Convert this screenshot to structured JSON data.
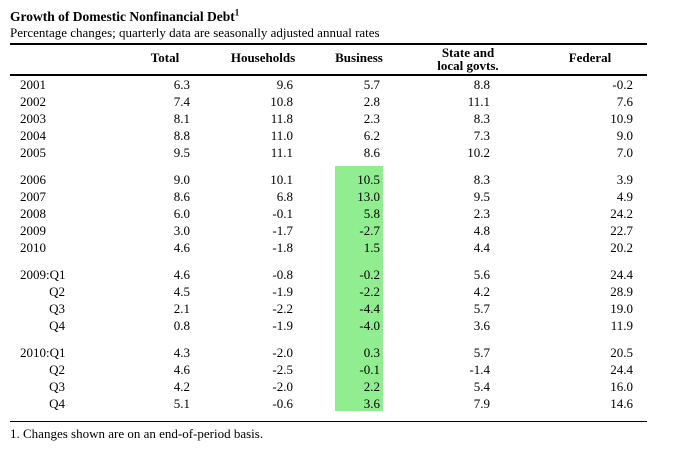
{
  "page": {
    "title": "Growth of Domestic Nonfinancial Debt",
    "title_superscript": "1",
    "subtitle": "Percentage changes; quarterly data are seasonally adjusted annual rates",
    "footnote": "1. Changes shown are on an end-of-period basis."
  },
  "table": {
    "columns": {
      "total": "Total",
      "households": "Households",
      "business": "Business",
      "state_local_line1": "State and",
      "state_local_line2": "local govts.",
      "federal": "Federal"
    },
    "highlight": {
      "column": "Business",
      "color": "#90EE90",
      "applies_to": "Business column values from 2006 annual rows through 2010:Q4 quarterly rows (continuous band)"
    },
    "sections": [
      {
        "business_highlighted": false,
        "rows": [
          {
            "label": "2001",
            "values": [
              "6.3",
              "9.6",
              "5.7",
              "8.8",
              "-0.2"
            ]
          },
          {
            "label": "2002",
            "values": [
              "7.4",
              "10.8",
              "2.8",
              "11.1",
              "7.6"
            ]
          },
          {
            "label": "2003",
            "values": [
              "8.1",
              "11.8",
              "2.3",
              "8.3",
              "10.9"
            ]
          },
          {
            "label": "2004",
            "values": [
              "8.8",
              "11.0",
              "6.2",
              "7.3",
              "9.0"
            ]
          },
          {
            "label": "2005",
            "values": [
              "9.5",
              "11.1",
              "8.6",
              "10.2",
              "7.0"
            ]
          }
        ]
      },
      {
        "business_highlighted": true,
        "rows": [
          {
            "label": "2006",
            "values": [
              "9.0",
              "10.1",
              "10.5",
              "8.3",
              "3.9"
            ]
          },
          {
            "label": "2007",
            "values": [
              "8.6",
              "6.8",
              "13.0",
              "9.5",
              "4.9"
            ]
          },
          {
            "label": "2008",
            "values": [
              "6.0",
              "-0.1",
              "5.8",
              "2.3",
              "24.2"
            ]
          },
          {
            "label": "2009",
            "values": [
              "3.0",
              "-1.7",
              "-2.7",
              "4.8",
              "22.7"
            ]
          },
          {
            "label": "2010",
            "values": [
              "4.6",
              "-1.8",
              "1.5",
              "4.4",
              "20.2"
            ]
          }
        ]
      },
      {
        "business_highlighted": true,
        "rows": [
          {
            "label": "2009:Q1",
            "values": [
              "4.6",
              "-0.8",
              "-0.2",
              "5.6",
              "24.4"
            ]
          },
          {
            "label": "Q2",
            "values": [
              "4.5",
              "-1.9",
              "-2.2",
              "4.2",
              "28.9"
            ]
          },
          {
            "label": "Q3",
            "values": [
              "2.1",
              "-2.2",
              "-4.4",
              "5.7",
              "19.0"
            ]
          },
          {
            "label": "Q4",
            "values": [
              "0.8",
              "-1.9",
              "-4.0",
              "3.6",
              "11.9"
            ]
          }
        ]
      },
      {
        "business_highlighted": true,
        "rows": [
          {
            "label": "2010:Q1",
            "values": [
              "4.3",
              "-2.0",
              "0.3",
              "5.7",
              "20.5"
            ]
          },
          {
            "label": "Q2",
            "values": [
              "4.6",
              "-2.5",
              "-0.1",
              "-1.4",
              "24.4"
            ]
          },
          {
            "label": "Q3",
            "values": [
              "4.2",
              "-2.0",
              "2.2",
              "5.4",
              "16.0"
            ]
          },
          {
            "label": "Q4",
            "values": [
              "5.1",
              "-0.6",
              "3.6",
              "7.9",
              "14.6"
            ]
          }
        ]
      }
    ]
  }
}
